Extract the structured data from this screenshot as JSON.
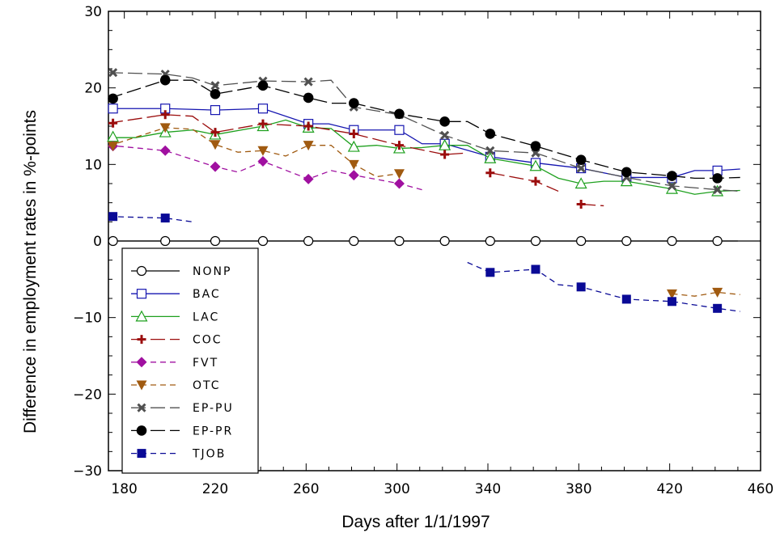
{
  "chart_data": {
    "type": "line",
    "title": "",
    "xlabel": "Days after 1/1/1997",
    "ylabel": "Difference in employment rates in %-points",
    "xlim": [
      173,
      460
    ],
    "ylim": [
      -30,
      30
    ],
    "x_ticks": [
      180,
      220,
      260,
      300,
      340,
      380,
      420,
      460
    ],
    "x_tick_labels": [
      "180",
      "220",
      "260",
      "300",
      "340",
      "380",
      "420",
      "460"
    ],
    "y_ticks": [
      -30,
      -20,
      -10,
      0,
      10,
      20,
      30
    ],
    "y_tick_labels": [
      "−30",
      "−20",
      "−10",
      "0",
      "10",
      "20",
      "30"
    ],
    "grid": false,
    "legend_position": "bottom-left",
    "series": [
      {
        "name": "NONP",
        "color": "#000000",
        "marker": "circle-open",
        "dash": "solid",
        "line": [
          [
            173,
            0
          ],
          [
            450,
            0
          ]
        ],
        "points": [
          [
            175,
            0
          ],
          [
            198,
            0
          ],
          [
            220,
            0
          ],
          [
            241,
            0
          ],
          [
            261,
            0
          ],
          [
            281,
            0
          ],
          [
            301,
            0
          ],
          [
            321,
            0
          ],
          [
            341,
            0
          ],
          [
            361,
            0
          ],
          [
            381,
            0
          ],
          [
            401,
            0
          ],
          [
            421,
            0
          ],
          [
            441,
            0
          ]
        ]
      },
      {
        "name": "BAC",
        "color": "#1515b0",
        "marker": "square-open",
        "dash": "solid",
        "line": [
          [
            173,
            17.3
          ],
          [
            198,
            17.3
          ],
          [
            220,
            17.1
          ],
          [
            241,
            17.3
          ],
          [
            261,
            15.3
          ],
          [
            270,
            15.3
          ],
          [
            281,
            14.5
          ],
          [
            301,
            14.5
          ],
          [
            311,
            12.7
          ],
          [
            321,
            12.7
          ],
          [
            341,
            11
          ],
          [
            361,
            10.2
          ],
          [
            381,
            9.5
          ],
          [
            401,
            8.3
          ],
          [
            421,
            8.3
          ],
          [
            431,
            9.2
          ],
          [
            441,
            9.2
          ],
          [
            451,
            9.4
          ]
        ],
        "points": [
          [
            175,
            17.3
          ],
          [
            198,
            17.3
          ],
          [
            220,
            17.1
          ],
          [
            241,
            17.3
          ],
          [
            261,
            15.3
          ],
          [
            281,
            14.5
          ],
          [
            301,
            14.5
          ],
          [
            321,
            12.7
          ],
          [
            341,
            11
          ],
          [
            361,
            10.2
          ],
          [
            381,
            9.5
          ],
          [
            401,
            8.3
          ],
          [
            421,
            8.2
          ],
          [
            441,
            9.2
          ]
        ]
      },
      {
        "name": "LAC",
        "color": "#1ea01e",
        "marker": "triangle-open",
        "dash": "solid",
        "line": [
          [
            173,
            13.5
          ],
          [
            185,
            13.5
          ],
          [
            198,
            14.2
          ],
          [
            210,
            14.5
          ],
          [
            220,
            13.9
          ],
          [
            241,
            15
          ],
          [
            251,
            15.8
          ],
          [
            261,
            14.8
          ],
          [
            271,
            14.7
          ],
          [
            281,
            12.3
          ],
          [
            291,
            12.5
          ],
          [
            301,
            12.1
          ],
          [
            311,
            12.2
          ],
          [
            321,
            12.5
          ],
          [
            331,
            12.5
          ],
          [
            341,
            10.8
          ],
          [
            361,
            9.8
          ],
          [
            371,
            8.2
          ],
          [
            381,
            7.5
          ],
          [
            391,
            7.8
          ],
          [
            401,
            7.8
          ],
          [
            421,
            6.8
          ],
          [
            431,
            6.1
          ],
          [
            441,
            6.5
          ],
          [
            451,
            6.6
          ]
        ],
        "points": [
          [
            175,
            13.6
          ],
          [
            198,
            14.2
          ],
          [
            220,
            13.9
          ],
          [
            241,
            15
          ],
          [
            261,
            14.8
          ],
          [
            281,
            12.3
          ],
          [
            301,
            12.1
          ],
          [
            321,
            12.5
          ],
          [
            341,
            10.8
          ],
          [
            361,
            9.8
          ],
          [
            381,
            7.5
          ],
          [
            401,
            7.8
          ],
          [
            421,
            6.8
          ],
          [
            441,
            6.5
          ]
        ]
      },
      {
        "name": "COC",
        "color": "#9b0d0d",
        "marker": "plus",
        "dash": "long",
        "segments": [
          [
            [
              173,
              15.4
            ],
            [
              198,
              16.5
            ],
            [
              210,
              16.3
            ],
            [
              220,
              14.2
            ],
            [
              241,
              15.3
            ],
            [
              261,
              15
            ],
            [
              281,
              14
            ],
            [
              301,
              12.5
            ],
            [
              321,
              11.3
            ],
            [
              331,
              11.5
            ]
          ],
          [
            [
              341,
              8.9
            ],
            [
              361,
              7.8
            ],
            [
              371,
              6.5
            ]
          ],
          [
            [
              381,
              4.8
            ],
            [
              391,
              4.6
            ]
          ]
        ],
        "points": [
          [
            175,
            15.4
          ],
          [
            198,
            16.5
          ],
          [
            220,
            14.2
          ],
          [
            241,
            15.3
          ],
          [
            261,
            15
          ],
          [
            281,
            14
          ],
          [
            301,
            12.5
          ],
          [
            321,
            11.3
          ],
          [
            341,
            8.9
          ],
          [
            361,
            7.8
          ],
          [
            381,
            4.8
          ]
        ]
      },
      {
        "name": "FVT",
        "color": "#a010a0",
        "marker": "diamond-filled",
        "dash": "short",
        "segments": [
          [
            [
              173,
              12.5
            ],
            [
              198,
              11.8
            ],
            [
              220,
              9.7
            ],
            [
              230,
              9
            ],
            [
              241,
              10.4
            ],
            [
              261,
              8.1
            ],
            [
              271,
              9.2
            ],
            [
              281,
              8.6
            ],
            [
              301,
              7.5
            ],
            [
              311,
              6.7
            ]
          ]
        ],
        "points": [
          [
            175,
            12.4
          ],
          [
            198,
            11.8
          ],
          [
            220,
            9.7
          ],
          [
            241,
            10.4
          ],
          [
            261,
            8.1
          ],
          [
            281,
            8.6
          ],
          [
            301,
            7.5
          ]
        ]
      },
      {
        "name": "OTC",
        "color": "#a05a10",
        "marker": "triangle-down-filled",
        "dash": "short",
        "segments": [
          [
            [
              173,
              12.4
            ],
            [
              198,
              14.8
            ],
            [
              210,
              14.6
            ],
            [
              220,
              12.6
            ],
            [
              230,
              11.6
            ],
            [
              241,
              11.8
            ],
            [
              251,
              11.1
            ],
            [
              261,
              12.5
            ],
            [
              271,
              12.5
            ],
            [
              281,
              10
            ],
            [
              291,
              8.4
            ],
            [
              301,
              8.8
            ]
          ],
          [
            [
              421,
              -6.9
            ],
            [
              431,
              -7.2
            ],
            [
              441,
              -6.7
            ],
            [
              451,
              -7
            ]
          ]
        ],
        "points": [
          [
            175,
            12.4
          ],
          [
            198,
            14.8
          ],
          [
            220,
            12.6
          ],
          [
            241,
            11.8
          ],
          [
            261,
            12.5
          ],
          [
            281,
            10
          ],
          [
            301,
            8.8
          ],
          [
            421,
            -6.9
          ],
          [
            441,
            -6.7
          ]
        ]
      },
      {
        "name": "EP-PU",
        "color": "#505050",
        "marker": "x",
        "dash": "long",
        "segments": [
          [
            [
              173,
              22
            ],
            [
              198,
              21.8
            ],
            [
              210,
              21.3
            ],
            [
              220,
              20.3
            ],
            [
              241,
              20.9
            ],
            [
              261,
              20.8
            ],
            [
              271,
              21
            ],
            [
              281,
              17.5
            ],
            [
              301,
              16.5
            ],
            [
              321,
              13.8
            ],
            [
              341,
              11.8
            ],
            [
              361,
              11.5
            ],
            [
              381,
              9.5
            ],
            [
              401,
              8.3
            ],
            [
              421,
              7.2
            ],
            [
              441,
              6.7
            ],
            [
              451,
              6.5
            ]
          ]
        ],
        "points": [
          [
            175,
            22
          ],
          [
            198,
            21.8
          ],
          [
            220,
            20.3
          ],
          [
            241,
            20.9
          ],
          [
            261,
            20.8
          ],
          [
            281,
            17.5
          ],
          [
            301,
            16.5
          ],
          [
            321,
            13.8
          ],
          [
            341,
            11.8
          ],
          [
            361,
            11.5
          ],
          [
            381,
            9.5
          ],
          [
            401,
            8.3
          ],
          [
            421,
            7.2
          ],
          [
            441,
            6.7
          ]
        ]
      },
      {
        "name": "EP-PR",
        "color": "#000000",
        "marker": "circle-filled",
        "dash": "long",
        "segments": [
          [
            [
              173,
              18.6
            ],
            [
              198,
              21
            ],
            [
              210,
              21
            ],
            [
              220,
              19.2
            ],
            [
              241,
              20.3
            ],
            [
              261,
              18.7
            ],
            [
              271,
              18
            ],
            [
              281,
              18
            ],
            [
              301,
              16.6
            ],
            [
              321,
              15.6
            ],
            [
              331,
              15.6
            ],
            [
              341,
              14
            ],
            [
              361,
              12.4
            ],
            [
              381,
              10.6
            ],
            [
              401,
              9
            ],
            [
              421,
              8.5
            ],
            [
              431,
              8.2
            ],
            [
              441,
              8.2
            ],
            [
              451,
              8.3
            ]
          ]
        ],
        "points": [
          [
            175,
            18.6
          ],
          [
            198,
            21
          ],
          [
            220,
            19.2
          ],
          [
            241,
            20.3
          ],
          [
            261,
            18.7
          ],
          [
            281,
            18
          ],
          [
            301,
            16.6
          ],
          [
            321,
            15.6
          ],
          [
            341,
            14
          ],
          [
            361,
            12.4
          ],
          [
            381,
            10.6
          ],
          [
            401,
            9
          ],
          [
            421,
            8.5
          ],
          [
            441,
            8.2
          ]
        ]
      },
      {
        "name": "TJOB",
        "color": "#0a0a96",
        "marker": "square-filled",
        "dash": "short",
        "segments": [
          [
            [
              173,
              3.2
            ],
            [
              198,
              3
            ],
            [
              210,
              2.5
            ]
          ],
          [
            [
              331,
              -2.8
            ],
            [
              341,
              -4.1
            ],
            [
              361,
              -3.7
            ],
            [
              371,
              -5.7
            ],
            [
              381,
              -6
            ],
            [
              401,
              -7.6
            ],
            [
              421,
              -7.9
            ],
            [
              441,
              -8.8
            ],
            [
              451,
              -9.2
            ]
          ]
        ],
        "points": [
          [
            175,
            3.2
          ],
          [
            198,
            3
          ],
          [
            341,
            -4.1
          ],
          [
            361,
            -3.7
          ],
          [
            381,
            -6
          ],
          [
            401,
            -7.6
          ],
          [
            421,
            -7.9
          ],
          [
            441,
            -8.8
          ]
        ]
      }
    ]
  }
}
